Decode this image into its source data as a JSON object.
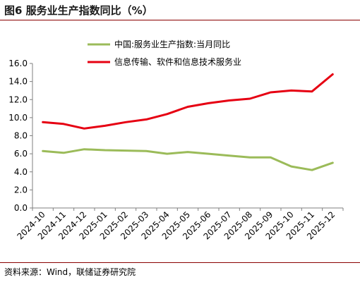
{
  "figure": {
    "title": "图6  服务业生产指数同比（%）",
    "source": "资料来源：Wind，联储证券研究院"
  },
  "colors": {
    "series_0": "#9bbb59",
    "series_1": "#e60012",
    "axis": "#7f7f7f",
    "rule": "#8a0000"
  },
  "chart_data": {
    "type": "line",
    "title": "",
    "xlabel": "",
    "ylabel": "",
    "ylim": [
      0,
      16
    ],
    "yticks": [
      "0.0",
      "2.0",
      "4.0",
      "6.0",
      "8.0",
      "10.0",
      "12.0",
      "14.0",
      "16.0"
    ],
    "grid": false,
    "legend": "top-right",
    "categories": [
      "2024-10",
      "2024-11",
      "2024-12",
      "2025-01",
      "2025-02",
      "2025-03",
      "2025-04",
      "2025-05",
      "2025-06",
      "2025-07",
      "2025-08",
      "2025-09",
      "2025-10",
      "2025-11",
      "2025-12"
    ],
    "series": [
      {
        "name": "中国:服务业生产指数:当月同比",
        "values": [
          6.3,
          6.1,
          6.5,
          6.4,
          6.35,
          6.3,
          6.0,
          6.2,
          6.0,
          5.8,
          5.6,
          5.6,
          4.6,
          4.2,
          5.0
        ]
      },
      {
        "name": "信息传输、软件和信息技术服务业",
        "values": [
          9.5,
          9.3,
          8.8,
          9.1,
          9.5,
          9.8,
          10.4,
          11.2,
          11.6,
          11.9,
          12.1,
          12.8,
          13.0,
          12.9,
          14.8
        ]
      }
    ]
  }
}
